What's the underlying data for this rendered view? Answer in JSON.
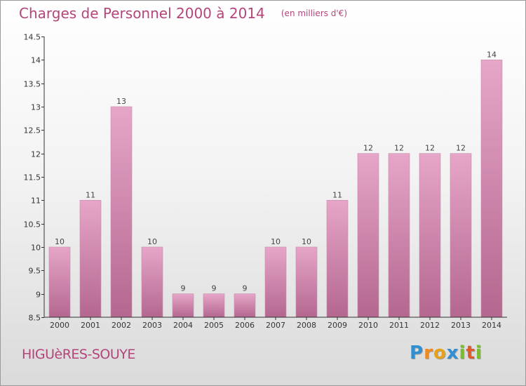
{
  "chart_data": {
    "type": "bar",
    "title": "Charges de Personnel 2000 à 2014",
    "subtitle": "(en milliers d'€)",
    "categories": [
      "2000",
      "2001",
      "2002",
      "2003",
      "2004",
      "2005",
      "2006",
      "2007",
      "2008",
      "2009",
      "2010",
      "2011",
      "2012",
      "2013",
      "2014"
    ],
    "values": [
      10,
      11,
      13,
      10,
      9,
      9,
      9,
      10,
      10,
      11,
      12,
      12,
      12,
      12,
      14
    ],
    "ylim": [
      8.5,
      14.5
    ],
    "yticks": [
      "8.5",
      "9",
      "9.5",
      "10",
      "10.5",
      "11",
      "11.5",
      "12",
      "12.5",
      "13",
      "13.5",
      "14",
      "14.5"
    ],
    "grid": false,
    "bar_color": "#d989b3"
  },
  "commune_name": "HIGUèRES-SOUYE",
  "logo": {
    "text": "Proxiti",
    "letters": [
      "P",
      "r",
      "o",
      "x",
      "i",
      "t",
      "i"
    ]
  }
}
